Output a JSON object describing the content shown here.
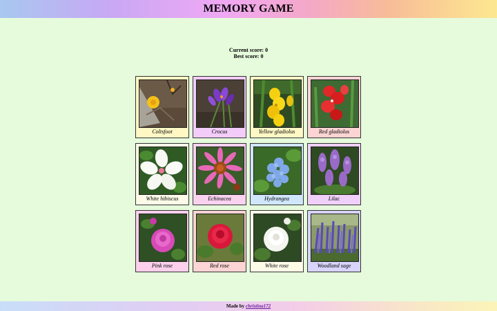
{
  "header": {
    "title": "MEMORY GAME"
  },
  "scores": {
    "current_label": "Current score:",
    "current_value": 0,
    "best_label": "Best score:",
    "best_value": 0
  },
  "cards": [
    {
      "name": "Coltsfoot",
      "bg": "#fff8c4"
    },
    {
      "name": "Crocus",
      "bg": "#f3ccfa"
    },
    {
      "name": "Yellow gladiolus",
      "bg": "#fff8c4"
    },
    {
      "name": "Red gladiolus",
      "bg": "#fcd4d4"
    },
    {
      "name": "White hibiscus",
      "bg": "#fdfbe8"
    },
    {
      "name": "Echinacea",
      "bg": "#f9d2f0"
    },
    {
      "name": "Hydrangea",
      "bg": "#cfe6fb"
    },
    {
      "name": "Lilac",
      "bg": "#f0d0f8"
    },
    {
      "name": "Pink rose",
      "bg": "#fcd0ec"
    },
    {
      "name": "Red rose",
      "bg": "#fcd4d4"
    },
    {
      "name": "White rose",
      "bg": "#fdfbe8"
    },
    {
      "name": "Woodland sage",
      "bg": "#d8d4fb"
    }
  ],
  "footer": {
    "prefix": "Made by",
    "author": "christina172"
  }
}
